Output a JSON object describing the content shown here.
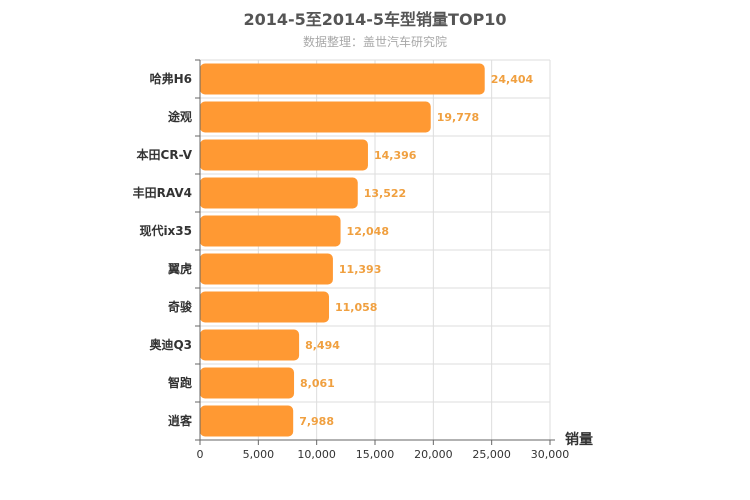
{
  "chart_data": {
    "type": "bar",
    "orientation": "horizontal",
    "title": "2014-5至2014-5车型销量TOP10",
    "subtitle": "数据整理：盖世汽车研究院",
    "xlabel": "销量",
    "categories": [
      "哈弗H6",
      "途观",
      "本田CR-V",
      "丰田RAV4",
      "现代ix35",
      "翼虎",
      "奇骏",
      "奥迪Q3",
      "智跑",
      "逍客"
    ],
    "values": [
      24404,
      19778,
      14396,
      13522,
      12048,
      11393,
      11058,
      8494,
      8061,
      7988
    ],
    "value_labels": [
      "24,404",
      "19,778",
      "14,396",
      "13,522",
      "12,048",
      "11,393",
      "11,058",
      "8,494",
      "8,061",
      "7,988"
    ],
    "xlim": [
      0,
      30000
    ],
    "ticks": [
      0,
      5000,
      10000,
      15000,
      20000,
      25000,
      30000
    ],
    "tick_labels": [
      "0",
      "5,000",
      "10,000",
      "15,000",
      "20,000",
      "25,000",
      "30,000"
    ],
    "grid": true,
    "bar_color": "#ff9933"
  }
}
